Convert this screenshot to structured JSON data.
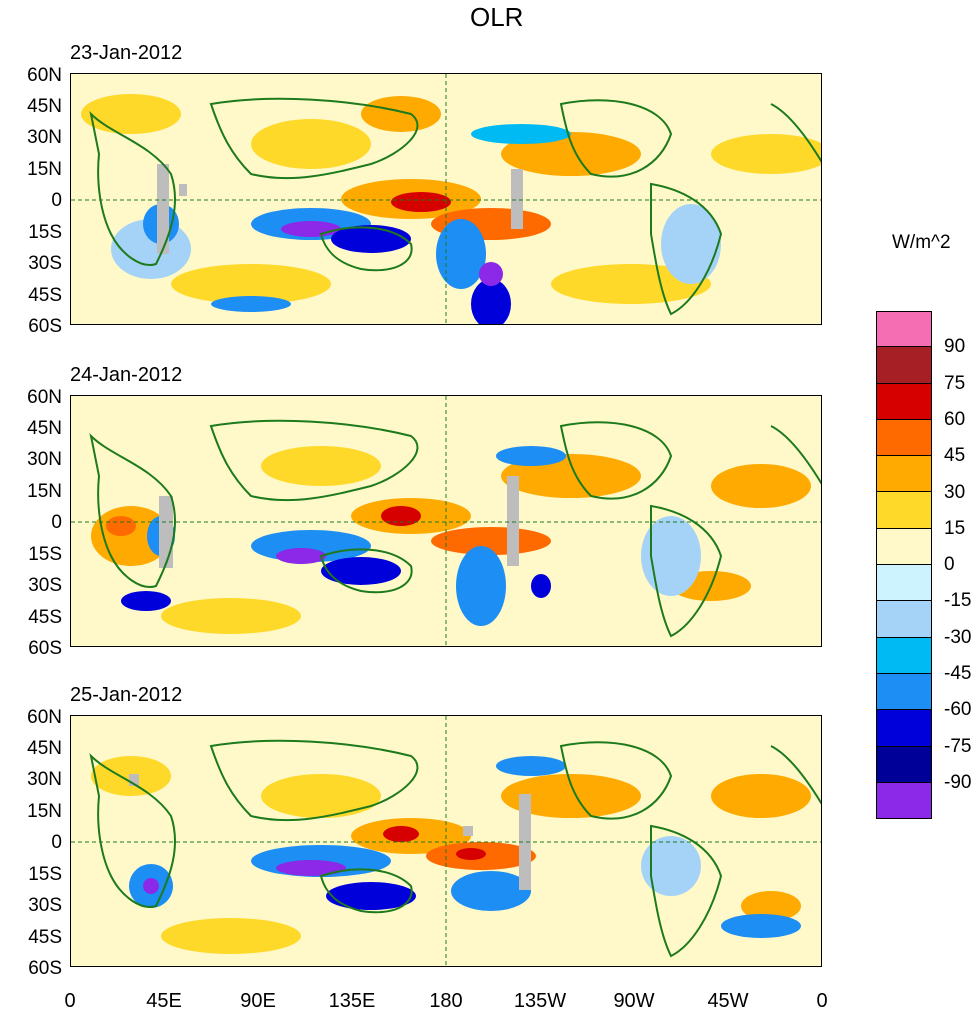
{
  "title": "OLR",
  "units": "W/m^2",
  "panels": [
    {
      "date": "23-Jan-2012"
    },
    {
      "date": "24-Jan-2012"
    },
    {
      "date": "25-Jan-2012"
    }
  ],
  "lat_labels": [
    "60N",
    "45N",
    "30N",
    "15N",
    "0",
    "15S",
    "30S",
    "45S",
    "60S"
  ],
  "lon_labels": [
    "0",
    "45E",
    "90E",
    "135E",
    "180",
    "135W",
    "90W",
    "45W",
    "0"
  ],
  "colorbar": {
    "labels": [
      "90",
      "75",
      "60",
      "45",
      "30",
      "15",
      "0",
      "-15",
      "-30",
      "-45",
      "-60",
      "-75",
      "-90"
    ],
    "colors": [
      "#f56eb4",
      "#a51f24",
      "#d70000",
      "#fe6a00",
      "#feaa00",
      "#ffd92a",
      "#fff9c9",
      "#cdf3fe",
      "#a5d3f8",
      "#00baf3",
      "#1d8ef3",
      "#0000db",
      "#000099",
      "#8c28e8"
    ]
  },
  "colors": {
    "coast": "#1d7a1d",
    "missing": "#bdbdbd"
  }
}
